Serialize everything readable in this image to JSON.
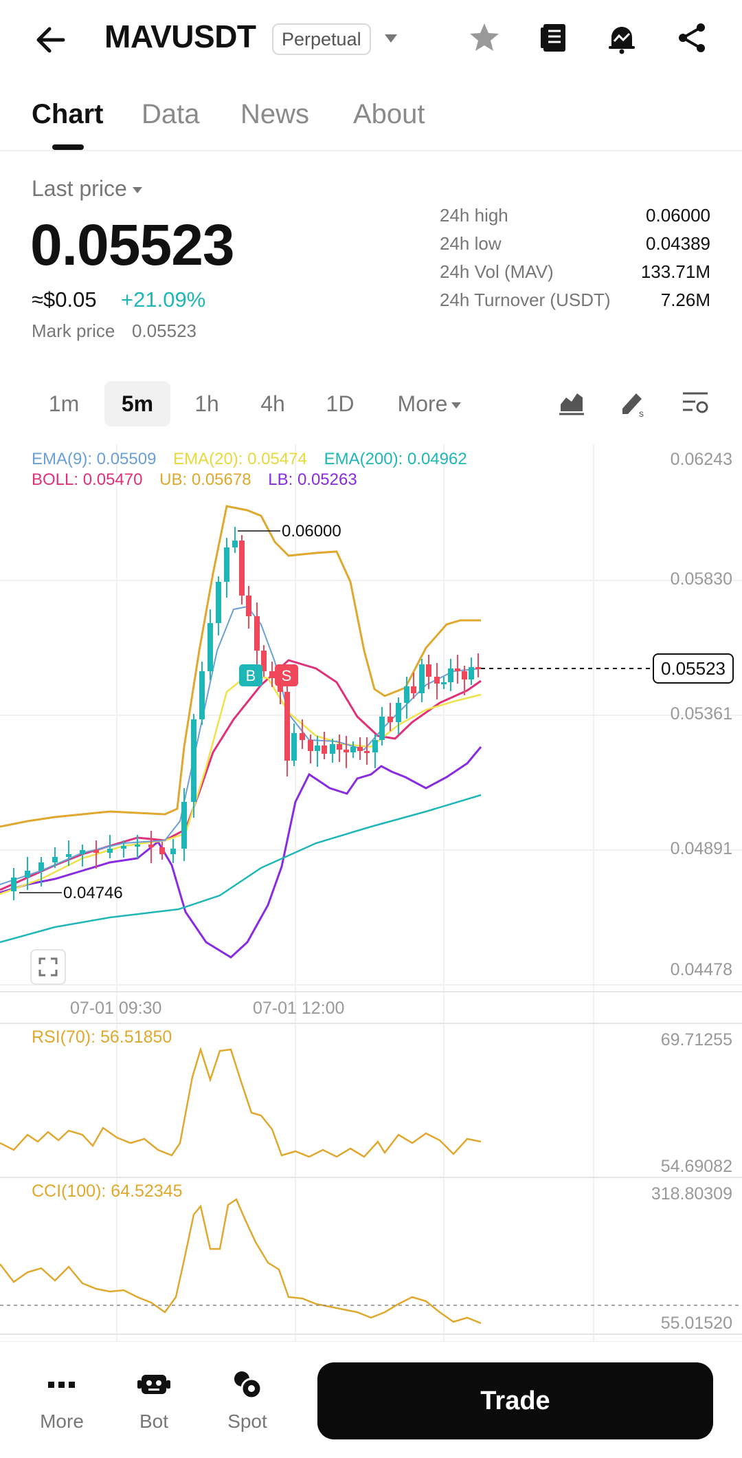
{
  "header": {
    "symbol": "MAVUSDT",
    "badge": "Perpetual",
    "icons": [
      "back-arrow-icon",
      "star-icon",
      "orderbook-icon",
      "price-alert-icon",
      "share-icon"
    ]
  },
  "tabs": [
    {
      "label": "Chart",
      "active": true
    },
    {
      "label": "Data",
      "active": false
    },
    {
      "label": "News",
      "active": false
    },
    {
      "label": "About",
      "active": false
    }
  ],
  "price": {
    "label": "Last price",
    "last": "0.05523",
    "usd": "≈$0.05",
    "change": "+21.09%",
    "mark_label": "Mark price",
    "mark_value": "0.05523",
    "change_color": "#1fb6b8"
  },
  "stats": [
    {
      "label": "24h high",
      "value": "0.06000"
    },
    {
      "label": "24h low",
      "value": "0.04389"
    },
    {
      "label": "24h Vol (MAV)",
      "value": "133.71M"
    },
    {
      "label": "24h Turnover (USDT)",
      "value": "7.26M"
    }
  ],
  "intervals": {
    "items": [
      "1m",
      "5m",
      "1h",
      "4h",
      "1D"
    ],
    "active": "5m",
    "more_label": "More"
  },
  "indicators": {
    "ema9": "EMA(9): 0.05509",
    "ema20": "EMA(20): 0.05474",
    "ema200": "EMA(200): 0.04962",
    "boll": "BOLL: 0.05470",
    "ub": "UB: 0.05678",
    "lb": "LB: 0.05263",
    "colors": {
      "ema9": "#6a9fd8",
      "ema20": "#efe24a",
      "ema200": "#1fb6b8",
      "boll": "#e0307a",
      "ub": "#e0a82e",
      "lb": "#8a2be2",
      "up": "#1fb6b8",
      "down": "#f0475a"
    }
  },
  "price_axis": [
    "0.06243",
    "0.05830",
    "0.05361",
    "0.04891",
    "0.04478"
  ],
  "annotations": {
    "high": "0.06000",
    "low": "0.04746",
    "current": "0.05523",
    "buy": "B",
    "sell": "S"
  },
  "time_axis": [
    "07-01 09:30",
    "07-01 12:00"
  ],
  "rsi": {
    "title": "RSI(70): 56.51850",
    "max": "69.71255",
    "min": "54.69082"
  },
  "cci": {
    "title": "CCI(100): 64.52345",
    "max": "318.80309",
    "min": "55.01520"
  },
  "bottom_nav": {
    "items": [
      {
        "label": "More",
        "icon": "more-dots-icon"
      },
      {
        "label": "Bot",
        "icon": "bot-icon"
      },
      {
        "label": "Spot",
        "icon": "spot-icon"
      }
    ],
    "trade_label": "Trade"
  }
}
